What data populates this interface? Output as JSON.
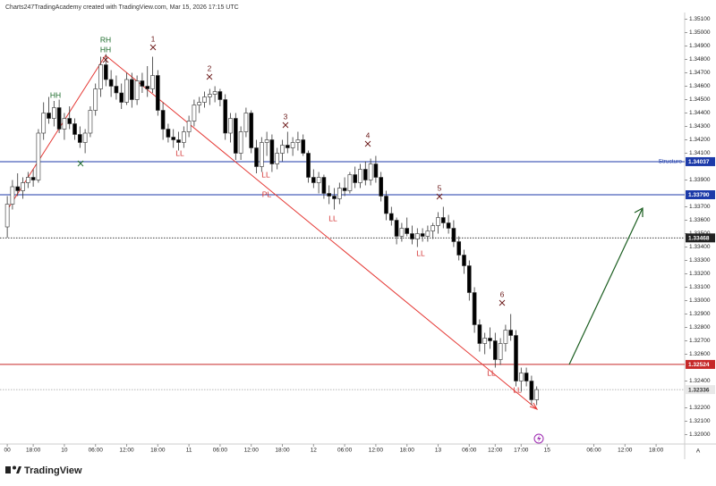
{
  "header": "Charts247TradingAcademy created with TradingView.com, Mar 15, 2026 17:15 UTC",
  "brand": "TradingView",
  "chart_data": {
    "type": "candlestick",
    "up_color": "#ffffff",
    "down_color": "#000000",
    "wick_color": "#333333",
    "open": [
      1.3355,
      1.3372,
      1.3385,
      1.3382,
      1.3388,
      1.3392,
      1.339,
      1.3425,
      1.344,
      1.3436,
      1.3444,
      1.3428,
      1.3436,
      1.3432,
      1.3424,
      1.3418,
      1.3425,
      1.3442,
      1.3458,
      1.3476,
      1.3465,
      1.346,
      1.3455,
      1.3448,
      1.3465,
      1.345,
      1.3464,
      1.346,
      1.3458,
      1.3468,
      1.3442,
      1.3428,
      1.3422,
      1.342,
      1.3418,
      1.3426,
      1.3434,
      1.3446,
      1.3448,
      1.3452,
      1.3454,
      1.3456,
      1.345,
      1.3425,
      1.3436,
      1.341,
      1.3426,
      1.344,
      1.3414,
      1.34,
      1.3418,
      1.342,
      1.3402,
      1.341,
      1.3416,
      1.3414,
      1.3418,
      1.342,
      1.341,
      1.3392,
      1.3388,
      1.3392,
      1.338,
      1.3378,
      1.3376,
      1.3384,
      1.3382,
      1.3394,
      1.3388,
      1.3398,
      1.339,
      1.3402,
      1.3392,
      1.3378,
      1.3365,
      1.336,
      1.3348,
      1.3354,
      1.335,
      1.3346,
      1.335,
      1.3348,
      1.3352,
      1.3356,
      1.3362,
      1.3358,
      1.3354,
      1.3344,
      1.3334,
      1.3326,
      1.3306,
      1.3282,
      1.3268,
      1.3272,
      1.327,
      1.3256,
      1.3268,
      1.3278,
      1.3274,
      1.324,
      1.3246,
      1.324,
      1.3226
    ],
    "high": [
      1.3378,
      1.339,
      1.3395,
      1.3392,
      1.3396,
      1.3398,
      1.3428,
      1.3448,
      1.3452,
      1.3449,
      1.345,
      1.344,
      1.3445,
      1.3436,
      1.343,
      1.3428,
      1.3445,
      1.3462,
      1.3482,
      1.3484,
      1.3472,
      1.3468,
      1.3462,
      1.347,
      1.347,
      1.3468,
      1.347,
      1.3475,
      1.3482,
      1.3472,
      1.3448,
      1.3432,
      1.3428,
      1.3426,
      1.343,
      1.3438,
      1.345,
      1.3452,
      1.3456,
      1.3458,
      1.346,
      1.3458,
      1.3454,
      1.344,
      1.344,
      1.343,
      1.3444,
      1.3442,
      1.342,
      1.3422,
      1.3426,
      1.3424,
      1.3414,
      1.342,
      1.3426,
      1.3422,
      1.3426,
      1.3424,
      1.3412,
      1.3398,
      1.3396,
      1.3394,
      1.3386,
      1.3384,
      1.3388,
      1.3392,
      1.3396,
      1.34,
      1.3402,
      1.3404,
      1.3406,
      1.3408,
      1.3396,
      1.3382,
      1.337,
      1.3362,
      1.3358,
      1.3362,
      1.3356,
      1.3354,
      1.3354,
      1.3356,
      1.3358,
      1.3366,
      1.337,
      1.3364,
      1.336,
      1.3348,
      1.3338,
      1.333,
      1.331,
      1.3286,
      1.3276,
      1.328,
      1.3276,
      1.3272,
      1.3282,
      1.329,
      1.3278,
      1.325,
      1.325,
      1.3244,
      1.3236
    ],
    "low": [
      1.3347,
      1.3368,
      1.3378,
      1.3376,
      1.3384,
      1.3385,
      1.3388,
      1.342,
      1.3432,
      1.343,
      1.3425,
      1.342,
      1.3428,
      1.342,
      1.3414,
      1.341,
      1.3422,
      1.3438,
      1.3452,
      1.346,
      1.3452,
      1.345,
      1.3443,
      1.3446,
      1.3444,
      1.3446,
      1.3455,
      1.3452,
      1.3455,
      1.3438,
      1.342,
      1.3418,
      1.3414,
      1.3412,
      1.3414,
      1.3422,
      1.343,
      1.344,
      1.3444,
      1.3446,
      1.3448,
      1.3445,
      1.342,
      1.3418,
      1.3405,
      1.3405,
      1.3422,
      1.341,
      1.3395,
      1.3396,
      1.3408,
      1.3396,
      1.3398,
      1.3404,
      1.341,
      1.3408,
      1.3412,
      1.3408,
      1.3388,
      1.3384,
      1.338,
      1.3376,
      1.3372,
      1.3368,
      1.3372,
      1.3378,
      1.338,
      1.3384,
      1.3384,
      1.3386,
      1.3386,
      1.3388,
      1.3374,
      1.336,
      1.3356,
      1.3342,
      1.3344,
      1.3348,
      1.3342,
      1.334,
      1.3344,
      1.3344,
      1.3346,
      1.335,
      1.3354,
      1.335,
      1.334,
      1.333,
      1.332,
      1.33,
      1.3276,
      1.3262,
      1.326,
      1.3264,
      1.325,
      1.3252,
      1.3262,
      1.327,
      1.3236,
      1.3232,
      1.3236,
      1.3222,
      1.3222
    ],
    "close": [
      1.3372,
      1.3385,
      1.3382,
      1.3388,
      1.3392,
      1.339,
      1.3425,
      1.344,
      1.3436,
      1.3444,
      1.3428,
      1.3436,
      1.3432,
      1.3424,
      1.3418,
      1.3425,
      1.3442,
      1.3458,
      1.3476,
      1.3465,
      1.346,
      1.3455,
      1.3448,
      1.3465,
      1.345,
      1.3464,
      1.346,
      1.3458,
      1.3468,
      1.3442,
      1.3428,
      1.3422,
      1.342,
      1.3418,
      1.3426,
      1.3434,
      1.3446,
      1.3448,
      1.3452,
      1.3454,
      1.3456,
      1.345,
      1.3425,
      1.3436,
      1.341,
      1.3426,
      1.344,
      1.3414,
      1.34,
      1.3418,
      1.342,
      1.3402,
      1.341,
      1.3416,
      1.3414,
      1.3418,
      1.342,
      1.341,
      1.3392,
      1.3388,
      1.3392,
      1.338,
      1.3378,
      1.3376,
      1.3384,
      1.3382,
      1.3394,
      1.3388,
      1.3398,
      1.339,
      1.3402,
      1.3392,
      1.3378,
      1.3365,
      1.336,
      1.3348,
      1.3354,
      1.335,
      1.3346,
      1.335,
      1.3348,
      1.3352,
      1.3356,
      1.3362,
      1.3358,
      1.3354,
      1.3344,
      1.3334,
      1.3326,
      1.3306,
      1.3282,
      1.3268,
      1.3272,
      1.327,
      1.3256,
      1.3268,
      1.3278,
      1.3274,
      1.324,
      1.3246,
      1.324,
      1.3226,
      1.32336
    ],
    "xlim": [
      -1.4,
      130.5
    ],
    "xticks": [
      {
        "value": 0,
        "label": "00"
      },
      {
        "value": 5,
        "label": "18:00"
      },
      {
        "value": 11,
        "label": "10"
      },
      {
        "value": 17,
        "label": "06:00"
      },
      {
        "value": 23,
        "label": "12:00"
      },
      {
        "value": 29,
        "label": "18:00"
      },
      {
        "value": 35,
        "label": "11"
      },
      {
        "value": 41,
        "label": "06:00"
      },
      {
        "value": 47,
        "label": "12:00"
      },
      {
        "value": 53,
        "label": "18:00"
      },
      {
        "value": 59,
        "label": "12"
      },
      {
        "value": 65,
        "label": "06:00"
      },
      {
        "value": 71,
        "label": "12:00"
      },
      {
        "value": 77,
        "label": "18:00"
      },
      {
        "value": 83,
        "label": "13"
      },
      {
        "value": 89,
        "label": "06:00"
      },
      {
        "value": 94,
        "label": "12:00"
      },
      {
        "value": 99,
        "label": "17:00"
      },
      {
        "value": 104,
        "label": "15"
      },
      {
        "value": 113,
        "label": "06:00"
      },
      {
        "value": 119,
        "label": "12:00"
      },
      {
        "value": 125,
        "label": "18:00"
      }
    ],
    "ylim": [
      1.3193,
      1.3515
    ],
    "yticks": [
      {
        "value": 1.351,
        "label": "1.35100"
      },
      {
        "value": 1.35,
        "label": "1.35000"
      },
      {
        "value": 1.349,
        "label": "1.34900"
      },
      {
        "value": 1.348,
        "label": "1.34800"
      },
      {
        "value": 1.347,
        "label": "1.34700"
      },
      {
        "value": 1.346,
        "label": "1.34600"
      },
      {
        "value": 1.345,
        "label": "1.34500"
      },
      {
        "value": 1.344,
        "label": "1.34400"
      },
      {
        "value": 1.343,
        "label": "1.34300"
      },
      {
        "value": 1.342,
        "label": "1.34200"
      },
      {
        "value": 1.341,
        "label": "1.34100"
      },
      {
        "value": 1.339,
        "label": "1.33900"
      },
      {
        "value": 1.337,
        "label": "1.33700"
      },
      {
        "value": 1.336,
        "label": "1.33600"
      },
      {
        "value": 1.335,
        "label": "1.33500"
      },
      {
        "value": 1.334,
        "label": "1.33400"
      },
      {
        "value": 1.333,
        "label": "1.33300"
      },
      {
        "value": 1.332,
        "label": "1.33200"
      },
      {
        "value": 1.331,
        "label": "1.33100"
      },
      {
        "value": 1.33,
        "label": "1.33000"
      },
      {
        "value": 1.329,
        "label": "1.32900"
      },
      {
        "value": 1.328,
        "label": "1.32800"
      },
      {
        "value": 1.327,
        "label": "1.32700"
      },
      {
        "value": 1.326,
        "label": "1.32600"
      },
      {
        "value": 1.324,
        "label": "1.32400"
      },
      {
        "value": 1.322,
        "label": "1.32200"
      },
      {
        "value": 1.321,
        "label": "1.32100"
      },
      {
        "value": 1.32,
        "label": "1.32000"
      }
    ],
    "levels": [
      {
        "value": 1.34037,
        "label": "1.34037",
        "color": "#1c3aa9",
        "style": "solid"
      },
      {
        "value": 1.3379,
        "label": "1.33790",
        "color": "#1c3aa9",
        "style": "solid"
      },
      {
        "value": 1.33468,
        "label": "1.33468",
        "color": "#222222",
        "style": "dotted"
      },
      {
        "value": 1.32524,
        "label": "1.32524",
        "color": "#c62828",
        "style": "solid"
      },
      {
        "value": 1.32336,
        "label": "1.32336",
        "color": "#9e9e9e",
        "style": "dotted"
      }
    ],
    "annotations": [
      {
        "text": "RH",
        "color": "#1b6b2a"
      },
      {
        "text": "HH",
        "color": "#1b6b2a"
      },
      {
        "text": "HH",
        "color": "#1b6b2a"
      },
      {
        "text": "1",
        "color": "#6b1a1a"
      },
      {
        "text": "2",
        "color": "#6b1a1a"
      },
      {
        "text": "3",
        "color": "#6b1a1a"
      },
      {
        "text": "4",
        "color": "#6b1a1a"
      },
      {
        "text": "5",
        "color": "#6b1a1a"
      },
      {
        "text": "6",
        "color": "#6b1a1a"
      },
      {
        "text": "LL",
        "color": "#d32f2f"
      },
      {
        "text": "LL",
        "color": "#d32f2f"
      },
      {
        "text": "LL",
        "color": "#d32f2f"
      },
      {
        "text": "LL",
        "color": "#d32f2f"
      },
      {
        "text": "LL",
        "color": "#d32f2f"
      },
      {
        "text": "LL",
        "color": "#d32f2f"
      },
      {
        "text": "PL",
        "color": "#d32f2f"
      },
      {
        "text": "Structure",
        "color": "#1c3aa9"
      }
    ],
    "axis_button": "A"
  }
}
